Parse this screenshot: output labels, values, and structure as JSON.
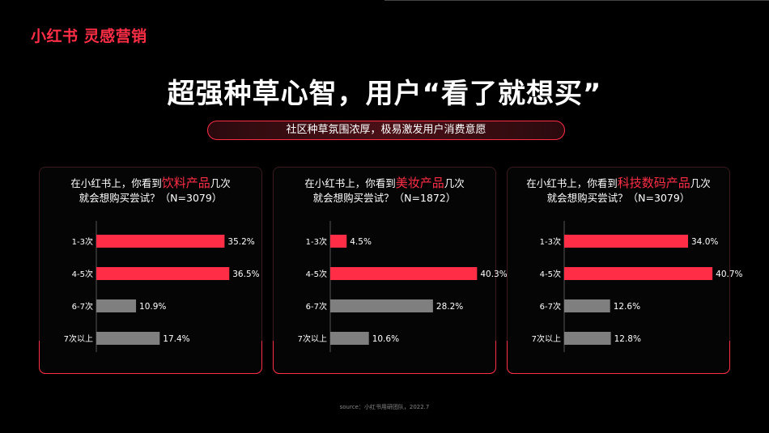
{
  "logo": "小红书 灵感营销",
  "title": "超强种草心智，用户“看了就想买”",
  "subtitle": "社区种草氛围浓厚，极易激发用户消费意愿",
  "source": "source：小红书用研团队，2022.7",
  "colors": {
    "accent": "#ff2d46",
    "bar_primary": "#ff2d46",
    "bar_secondary": "#7f7f7f"
  },
  "chart_data": [
    {
      "type": "bar",
      "orientation": "horizontal",
      "title_prefix": "在小红书上，你看到",
      "title_highlight": "饮料产品",
      "title_suffix": "几次",
      "title_line2": "就会想购买尝试？（N=3079）",
      "categories": [
        "1-3次",
        "4-5次",
        "6-7次",
        "7次以上"
      ],
      "values": [
        35.2,
        36.5,
        10.9,
        17.4
      ],
      "labels": [
        "35.2%",
        "36.5%",
        "10.9%",
        "17.4%"
      ],
      "highlight": [
        true,
        true,
        false,
        false
      ]
    },
    {
      "type": "bar",
      "orientation": "horizontal",
      "title_prefix": "在小红书上，你看到",
      "title_highlight": "美妆产品",
      "title_suffix": "几次",
      "title_line2": "就会想购买尝试？（N=1872）",
      "categories": [
        "1-3次",
        "4-5次",
        "6-7次",
        "7次以上"
      ],
      "values": [
        4.5,
        40.3,
        28.2,
        10.6
      ],
      "labels": [
        "4.5%",
        "40.3%",
        "28.2%",
        "10.6%"
      ],
      "highlight": [
        true,
        true,
        false,
        false
      ]
    },
    {
      "type": "bar",
      "orientation": "horizontal",
      "title_prefix": "在小红书上，你看到",
      "title_highlight": "科技数码产品",
      "title_suffix": "几次",
      "title_line2": "就会想购买尝试？（N=3079）",
      "categories": [
        "1-3次",
        "4-5次",
        "6-7次",
        "7次以上"
      ],
      "values": [
        34.0,
        40.7,
        12.6,
        12.8
      ],
      "labels": [
        "34.0%",
        "40.7%",
        "12.6%",
        "12.8%"
      ],
      "highlight": [
        true,
        true,
        false,
        false
      ]
    }
  ]
}
